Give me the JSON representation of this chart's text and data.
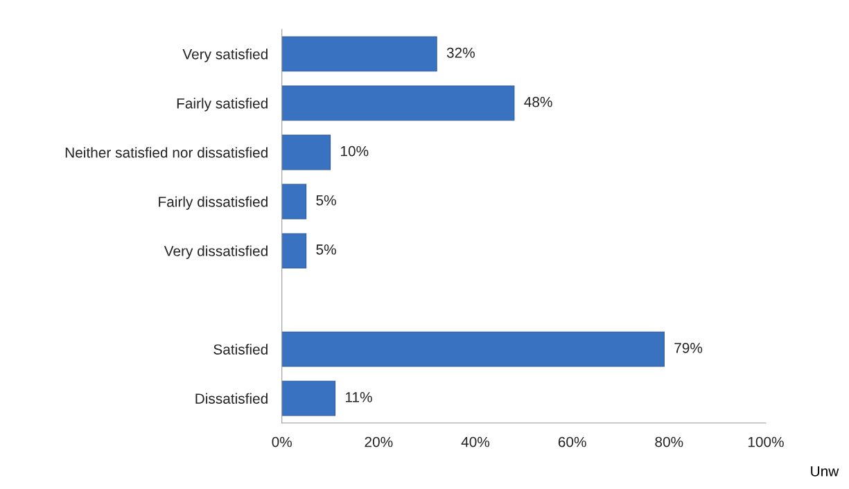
{
  "chart_data": {
    "type": "bar",
    "orientation": "horizontal",
    "categories": [
      "Very satisfied",
      "Fairly satisfied",
      "Neither satisfied nor dissatisfied",
      "Fairly dissatisfied",
      "Very dissatisfied",
      null,
      "Satisfied",
      "Dissatisfied"
    ],
    "values": [
      32,
      48,
      10,
      5,
      5,
      null,
      79,
      11
    ],
    "color": "#3a72c2",
    "value_labels": [
      "32%",
      "48%",
      "10%",
      "5%",
      "5%",
      null,
      "79%",
      "11%"
    ],
    "xlim": [
      0,
      100
    ],
    "xticks": [
      {
        "value": 0,
        "label": "0%"
      },
      {
        "value": 20,
        "label": "20%"
      },
      {
        "value": 40,
        "label": "40%"
      },
      {
        "value": 60,
        "label": "60%"
      },
      {
        "value": 80,
        "label": "80%"
      },
      {
        "value": 100,
        "label": "100%"
      }
    ],
    "grid": false,
    "annotations": [
      "Unw"
    ]
  }
}
